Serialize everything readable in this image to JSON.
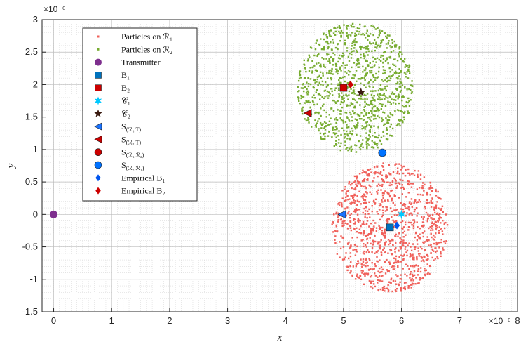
{
  "chart_data": {
    "type": "scatter",
    "xlabel": "x",
    "ylabel": "y",
    "x_exponent": "×10⁻⁶",
    "y_exponent": "×10⁻⁶",
    "xlim": [
      -0.2,
      8
    ],
    "ylim": [
      -1.5,
      3
    ],
    "xticks": [
      0,
      1,
      2,
      3,
      4,
      5,
      6,
      7,
      8
    ],
    "yticks": [
      -1.5,
      -1,
      -0.5,
      0,
      0.5,
      1,
      1.5,
      2,
      2.5,
      3
    ],
    "xtick_labels": [
      "0",
      "1",
      "2",
      "3",
      "4",
      "5",
      "6",
      "7",
      "8"
    ],
    "ytick_labels": [
      "-1.5",
      "-1",
      "-0.5",
      "0",
      "0.5",
      "1",
      "1.5",
      "2",
      "2.5",
      "3"
    ],
    "grid": true,
    "minor_grid": true,
    "legend_placement": "top-left",
    "particle_clouds": [
      {
        "name": "Particles on R1",
        "color": "#f0605a",
        "center": [
          5.8,
          -0.2
        ],
        "radius": 1.0,
        "count": 1100
      },
      {
        "name": "Particles on R2",
        "color": "#77ac30",
        "center": [
          5.2,
          1.95
        ],
        "radius": 1.0,
        "count": 1100
      }
    ],
    "series": [
      {
        "name": "Particles on R1",
        "legend": "Particles on ℛ₁",
        "marker": "dot",
        "color": "#f0605a",
        "points": []
      },
      {
        "name": "Particles on R2",
        "legend": "Particles on ℛ₂",
        "marker": "dot",
        "color": "#77ac30",
        "points": []
      },
      {
        "name": "Transmitter",
        "legend": "Transmitter",
        "marker": "hexagon",
        "color": "#7e2f8e",
        "points": [
          [
            0,
            0
          ]
        ]
      },
      {
        "name": "B1",
        "legend": "B₁",
        "marker": "square",
        "color": "#0072bd",
        "points": [
          [
            5.8,
            -0.2
          ]
        ]
      },
      {
        "name": "B2",
        "legend": "B₂",
        "marker": "square",
        "color": "#cc0000",
        "points": [
          [
            5.0,
            1.95
          ]
        ]
      },
      {
        "name": "C1",
        "legend": "𝒞₁",
        "marker": "star6",
        "color": "#00c8ff",
        "points": [
          [
            6.0,
            0.0
          ]
        ]
      },
      {
        "name": "C2",
        "legend": "𝒞₂",
        "marker": "pentagram",
        "color": "#3a1a10",
        "points": [
          [
            5.3,
            1.88
          ]
        ]
      },
      {
        "name": "S(R1,T)",
        "legend": "S",
        "legend_sub": "(ℛ₁,T)",
        "marker": "triangle-left",
        "color": "#1a73ff",
        "points": [
          [
            4.97,
            0.0
          ]
        ]
      },
      {
        "name": "S(R2,T)",
        "legend": "S",
        "legend_sub": "(ℛ₂,T)",
        "marker": "triangle-left",
        "color": "#cc0000",
        "points": [
          [
            4.38,
            1.56
          ]
        ]
      },
      {
        "name": "S(R1,R2)",
        "legend": "S",
        "legend_sub": "(ℛ₁,ℛ₂)",
        "marker": "circle",
        "color": "#cc0000",
        "points": []
      },
      {
        "name": "S(R2,R1)",
        "legend": "S",
        "legend_sub": "(ℛ₂,ℛ₁)",
        "marker": "circle",
        "color": "#0072ff",
        "points": [
          [
            5.67,
            0.95
          ]
        ]
      },
      {
        "name": "Empirical B1",
        "legend": "Empirical B₁",
        "marker": "diamond",
        "color": "#0055ee",
        "points": [
          [
            5.92,
            -0.17
          ]
        ]
      },
      {
        "name": "Empirical B2",
        "legend": "Empirical B₂",
        "marker": "diamond",
        "color": "#cc0000",
        "points": [
          [
            5.12,
            2.0
          ]
        ]
      }
    ]
  }
}
